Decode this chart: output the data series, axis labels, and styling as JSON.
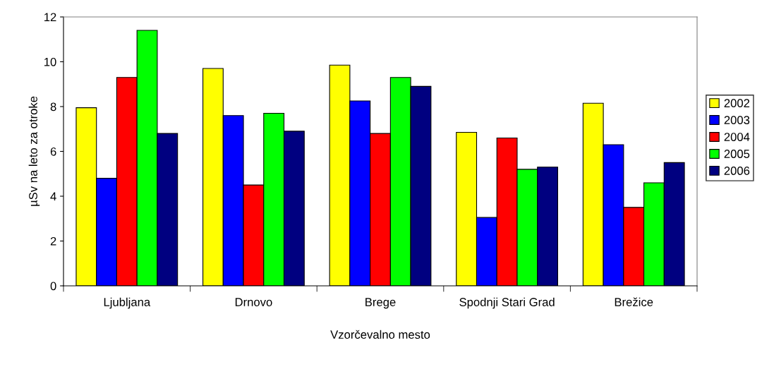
{
  "chart_data": {
    "type": "bar",
    "xlabel": "Vzorčevalno mesto",
    "ylabel": "µSv na leto za otroke",
    "categories": [
      "Ljubljana",
      "Drnovo",
      "Brege",
      "Spodnji Stari Grad",
      "Brežice"
    ],
    "series": [
      {
        "name": "2002",
        "color": "#ffff00",
        "values": [
          7.95,
          9.7,
          9.85,
          6.85,
          8.15
        ]
      },
      {
        "name": "2003",
        "color": "#0000ff",
        "values": [
          4.8,
          7.6,
          8.25,
          3.05,
          6.3
        ]
      },
      {
        "name": "2004",
        "color": "#ff0000",
        "values": [
          9.3,
          4.5,
          6.8,
          6.6,
          3.5
        ]
      },
      {
        "name": "2005",
        "color": "#00ff00",
        "values": [
          11.4,
          7.7,
          9.3,
          5.2,
          4.6
        ]
      },
      {
        "name": "2006",
        "color": "#000080",
        "values": [
          6.8,
          6.9,
          8.9,
          5.3,
          5.5
        ]
      }
    ],
    "ylim": [
      0,
      12
    ],
    "yticks": [
      0,
      2,
      4,
      6,
      8,
      10,
      12
    ],
    "grid": false,
    "legend": "right"
  }
}
